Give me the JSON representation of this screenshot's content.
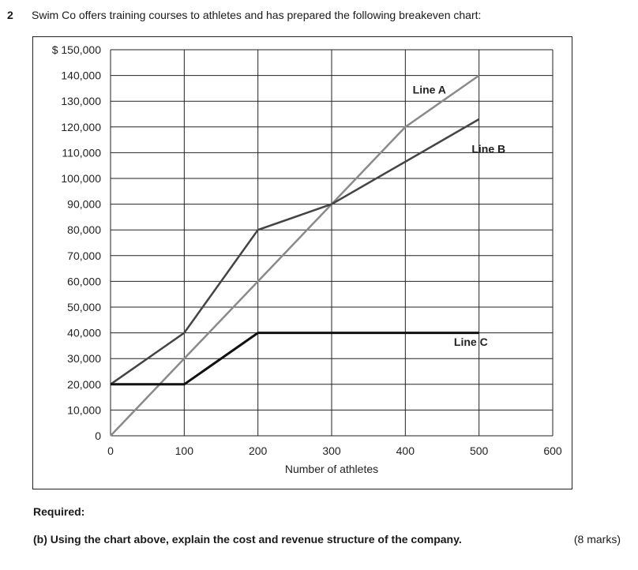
{
  "question": {
    "number": "2",
    "text": "Swim Co offers training courses to athletes and has prepared the following breakeven chart:"
  },
  "chart_data": {
    "type": "line",
    "xlabel": "Number of athletes",
    "ylabel": "",
    "xlim": [
      0,
      600
    ],
    "ylim": [
      0,
      150000
    ],
    "x_ticks": [
      0,
      100,
      200,
      300,
      400,
      500,
      600
    ],
    "y_ticks": [
      0,
      10000,
      20000,
      30000,
      40000,
      50000,
      60000,
      70000,
      80000,
      90000,
      100000,
      110000,
      120000,
      130000,
      140000,
      150000
    ],
    "y_tick_labels": [
      "0",
      "10,000",
      "20,000",
      "30,000",
      "40,000",
      "50,000",
      "60,000",
      "70,000",
      "80,000",
      "90,000",
      "100,000",
      "110,000",
      "120,000",
      "130,000",
      "140,000",
      "$ 150,000"
    ],
    "grid": true,
    "series": [
      {
        "name": "Line A",
        "color": "#8a8a8a",
        "points": [
          [
            0,
            0
          ],
          [
            400,
            120000
          ],
          [
            500,
            140000
          ]
        ]
      },
      {
        "name": "Line B",
        "color": "#444444",
        "points": [
          [
            0,
            20000
          ],
          [
            100,
            40000
          ],
          [
            200,
            80000
          ],
          [
            300,
            90000
          ],
          [
            500,
            123000
          ]
        ]
      },
      {
        "name": "Line C",
        "color": "#111111",
        "points": [
          [
            0,
            20000
          ],
          [
            100,
            20000
          ],
          [
            200,
            40000
          ],
          [
            500,
            40000
          ]
        ]
      }
    ]
  },
  "footer": {
    "required": "Required:",
    "part_b": "(b) Using the chart above, explain the cost and revenue structure of the company.",
    "marks": "(8 marks)"
  }
}
